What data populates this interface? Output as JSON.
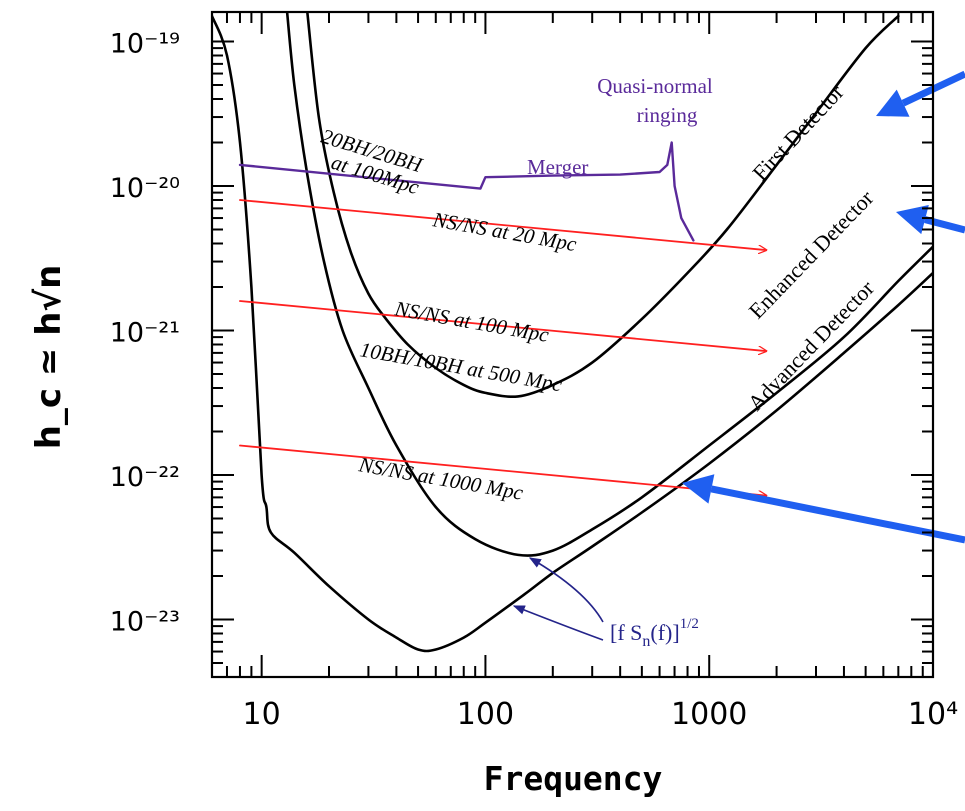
{
  "chart_data": {
    "type": "line",
    "xscale": "log",
    "yscale": "log",
    "xlim": [
      6,
      10000
    ],
    "ylim": [
      4e-24,
      1.6e-19
    ],
    "xlabel": "Frequency",
    "ylabel": "h_c ≃ h√n",
    "x_ticks": [
      {
        "value": 10,
        "label": "10"
      },
      {
        "value": 100,
        "label": "100"
      },
      {
        "value": 1000,
        "label": "1000"
      },
      {
        "value": 10000,
        "label": "10⁴"
      }
    ],
    "y_ticks": [
      {
        "value": 1e-19,
        "label": "10⁻¹⁹"
      },
      {
        "value": 1e-20,
        "label": "10⁻²⁰"
      },
      {
        "value": 1e-21,
        "label": "10⁻²¹"
      },
      {
        "value": 1e-22,
        "label": "10⁻²²"
      },
      {
        "value": 1e-23,
        "label": "10⁻²³"
      }
    ],
    "series": [
      {
        "name": "First Detector",
        "color": "#000000",
        "x": [
          16,
          18,
          21,
          25,
          30,
          36,
          45,
          60,
          80,
          100,
          140,
          200,
          300,
          500,
          800,
          1200,
          2000,
          3000,
          5000,
          7000
        ],
        "y": [
          1.6e-19,
          3e-20,
          9e-21,
          3.5e-21,
          1.8e-21,
          1.2e-21,
          8e-22,
          5.5e-22,
          4.2e-22,
          3.7e-22,
          3.5e-22,
          4.2e-22,
          6e-22,
          1.2e-21,
          2.5e-21,
          5e-21,
          1.4e-20,
          3.2e-20,
          9e-20,
          1.5e-19
        ]
      },
      {
        "name": "Enhanced Detector",
        "color": "#000000",
        "x": [
          13,
          14,
          16,
          19,
          23,
          30,
          40,
          60,
          90,
          140,
          200,
          300,
          500,
          1000,
          2000,
          4000,
          7000,
          10000
        ],
        "y": [
          1.6e-19,
          5e-20,
          1.2e-20,
          3e-21,
          1e-21,
          4e-22,
          1.6e-22,
          6e-23,
          3.6e-23,
          2.8e-23,
          3e-23,
          4.2e-23,
          7e-23,
          1.6e-22,
          3.7e-22,
          9e-22,
          2.2e-21,
          3.8e-21
        ]
      },
      {
        "name": "Advanced Detector",
        "color": "#000000",
        "x": [
          6,
          7,
          8,
          9,
          10,
          10.5,
          11,
          14,
          20,
          30,
          40,
          50,
          60,
          80,
          100,
          150,
          200,
          300,
          500,
          1000,
          2000,
          4000,
          7000,
          10000
        ],
        "y": [
          1.5e-19,
          8e-20,
          2e-20,
          2e-21,
          1e-22,
          6e-23,
          4e-23,
          2.9e-23,
          1.7e-23,
          1e-23,
          7.5e-24,
          6.2e-24,
          6.2e-24,
          7.5e-24,
          9.5e-24,
          1.5e-23,
          2.1e-23,
          3.2e-23,
          5.5e-23,
          1.2e-22,
          2.8e-22,
          7e-22,
          1.5e-21,
          2.5e-21
        ]
      },
      {
        "name": "20BH/20BH at 100Mpc",
        "color": "#5a2a9a",
        "x": [
          8,
          95,
          100,
          200,
          400,
          600,
          650,
          680,
          700,
          750,
          850
        ],
        "y": [
          1.4e-20,
          9.6e-21,
          1.15e-20,
          1.18e-20,
          1.2e-20,
          1.25e-20,
          1.4e-20,
          2e-20,
          1e-20,
          6e-21,
          4.2e-21
        ]
      },
      {
        "name": "NS/NS at 20 Mpc",
        "color": "#ff2020",
        "x": [
          8,
          1800
        ],
        "y": [
          8e-21,
          3.6e-21
        ]
      },
      {
        "name": "NS/NS at 100 Mpc",
        "color": "#ff2020",
        "x": [
          8,
          1800
        ],
        "y": [
          1.6e-21,
          7.2e-22
        ]
      },
      {
        "name": "NS/NS at 1000 Mpc",
        "color": "#ff2020",
        "x": [
          8,
          1800
        ],
        "y": [
          1.6e-22,
          7.2e-23
        ]
      }
    ],
    "annotations": {
      "first_detector": "First Detector",
      "enhanced_detector": "Enhanced Detector",
      "advanced_detector": "Advanced Detector",
      "bh20_line1": "20BH/20BH",
      "bh20_line2": "at 100Mpc",
      "merger": "Merger",
      "quasi_line1": "Quasi-normal",
      "quasi_line2": "ringing",
      "nsns20": "NS/NS at 20 Mpc",
      "nsns100": "NS/NS at 100 Mpc",
      "bh10": "10BH/10BH at 500 Mpc",
      "nsns1000": "NS/NS at 1000 Mpc",
      "sn_formula_prefix": "[f S",
      "sn_formula_sub": "n",
      "sn_formula_mid": "(f)]",
      "sn_formula_sup": "1/2"
    },
    "colors": {
      "detector": "#000000",
      "merger": "#5a2a9a",
      "inspiral": "#ff2020",
      "pointer": "#1f5ff0",
      "formula": "#24248a"
    },
    "grid": false
  }
}
